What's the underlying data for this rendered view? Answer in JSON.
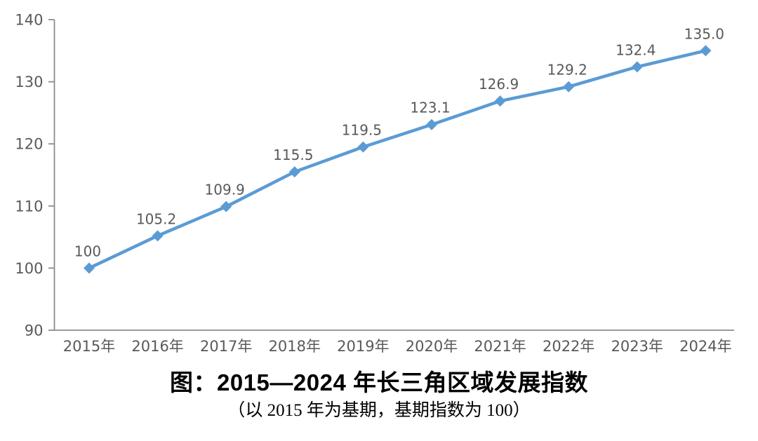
{
  "chart_data": {
    "type": "line",
    "categories": [
      "2015年",
      "2016年",
      "2017年",
      "2018年",
      "2019年",
      "2020年",
      "2021年",
      "2022年",
      "2023年",
      "2024年"
    ],
    "values": [
      100,
      105.2,
      109.9,
      115.5,
      119.5,
      123.1,
      126.9,
      129.2,
      132.4,
      135.0
    ],
    "data_labels": [
      "100",
      "105.2",
      "109.9",
      "115.5",
      "119.5",
      "123.1",
      "126.9",
      "129.2",
      "132.4",
      "135.0"
    ],
    "y_ticks": [
      "140",
      "130",
      "120",
      "110",
      "100",
      "90"
    ],
    "ylim": [
      90,
      140
    ],
    "xlabel": "",
    "ylabel": "",
    "grid": false,
    "legend": "none",
    "line_color": "#5b9bd5",
    "marker_shape": "diamond",
    "label_color": "#595959",
    "axis_color": "#8c8c8c"
  },
  "caption": {
    "title": "图：2015—2024 年长三角区域发展指数",
    "subtitle": "（以 2015 年为基期，基期指数为 100）"
  }
}
